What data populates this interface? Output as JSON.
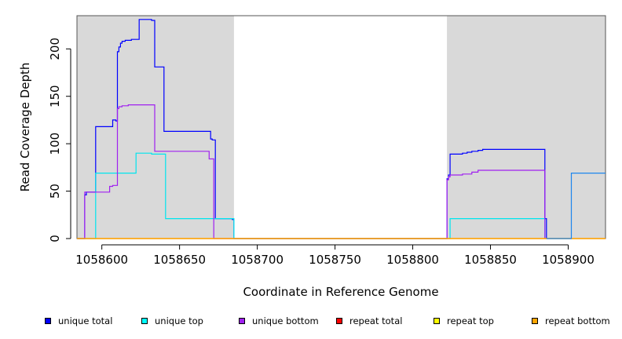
{
  "chart_data": {
    "type": "line",
    "title": "",
    "xlabel": "Coordinate in Reference Genome",
    "ylabel": "Read Coverage Depth",
    "xlim": [
      1058584,
      1058924
    ],
    "ylim": [
      0,
      235
    ],
    "xticks": [
      1058600,
      1058650,
      1058700,
      1058750,
      1058800,
      1058850,
      1058900
    ],
    "xtick_labels": [
      "1058600",
      "1058650",
      "1058700",
      "1058750",
      "1058800",
      "1058850",
      "1058900"
    ],
    "yticks": [
      0,
      50,
      100,
      150,
      200
    ],
    "ytick_labels": [
      "0",
      "50",
      "100",
      "150",
      "200"
    ],
    "grid": false,
    "legend_position": "bottom",
    "shaded_regions": [
      [
        1058584,
        1058685
      ],
      [
        1058822,
        1058924
      ]
    ],
    "series": [
      {
        "name": "unique total",
        "color": "#0000ff",
        "x": [
          1058584,
          1058589,
          1058589,
          1058590,
          1058590,
          1058596,
          1058596,
          1058607,
          1058607,
          1058609,
          1058609,
          1058610,
          1058610,
          1058611,
          1058611,
          1058612,
          1058612,
          1058613,
          1058613,
          1058615,
          1058615,
          1058619,
          1058619,
          1058624,
          1058624,
          1058632,
          1058632,
          1058634,
          1058634,
          1058640,
          1058640,
          1058656,
          1058656,
          1058670,
          1058670,
          1058671,
          1058671,
          1058673,
          1058673,
          1058684,
          1058684,
          1058685,
          1058685,
          1058822,
          1058822,
          1058823,
          1058823,
          1058824,
          1058824,
          1058832,
          1058832,
          1058835,
          1058835,
          1058838,
          1058838,
          1058842,
          1058842,
          1058845,
          1058845,
          1058885,
          1058885,
          1058886,
          1058886
        ],
        "y": [
          0,
          0,
          46,
          46,
          49,
          49,
          118,
          118,
          125,
          125,
          124,
          124,
          197,
          197,
          202,
          202,
          206,
          206,
          208,
          208,
          209,
          209,
          210,
          210,
          231,
          231,
          230,
          230,
          181,
          181,
          113,
          113,
          113,
          113,
          105,
          105,
          104,
          104,
          21,
          21,
          20,
          20,
          0,
          0,
          63,
          63,
          67,
          67,
          89,
          89,
          90,
          90,
          91,
          91,
          92,
          92,
          93,
          93,
          94,
          94,
          21,
          21,
          0
        ]
      },
      {
        "name": "unique top",
        "color": "#00e5ee",
        "x": [
          1058584,
          1058596,
          1058596,
          1058622,
          1058622,
          1058632,
          1058632,
          1058641,
          1058641,
          1058685,
          1058685,
          1058824,
          1058824,
          1058885,
          1058885
        ],
        "y": [
          0,
          0,
          69,
          69,
          90,
          90,
          89,
          89,
          21,
          21,
          0,
          0,
          21,
          21,
          0
        ]
      },
      {
        "name": "unique bottom",
        "color": "#a020f0",
        "x": [
          1058584,
          1058589,
          1058589,
          1058605,
          1058605,
          1058607,
          1058607,
          1058610,
          1058610,
          1058611,
          1058611,
          1058613,
          1058613,
          1058617,
          1058617,
          1058634,
          1058634,
          1058669,
          1058669,
          1058672,
          1058672,
          1058822,
          1058822,
          1058823,
          1058823,
          1058824,
          1058824,
          1058832,
          1058832,
          1058838,
          1058838,
          1058842,
          1058842,
          1058885,
          1058885
        ],
        "y": [
          0,
          0,
          49,
          49,
          55,
          55,
          56,
          56,
          137,
          137,
          139,
          139,
          140,
          140,
          141,
          141,
          92,
          92,
          84,
          84,
          0,
          0,
          62,
          62,
          65,
          65,
          67,
          67,
          68,
          68,
          70,
          70,
          72,
          72,
          0
        ]
      },
      {
        "name": "repeat total",
        "color": "#ff0000",
        "x": [
          1058584,
          1058924
        ],
        "y": [
          0,
          0
        ]
      },
      {
        "name": "repeat top",
        "color": "#ffff00",
        "x": [
          1058584,
          1058924
        ],
        "y": [
          0,
          0
        ]
      },
      {
        "name": "repeat bottom",
        "color": "#ffa500",
        "x": [
          1058584,
          1058924
        ],
        "y": [
          0,
          0
        ]
      },
      {
        "name": "",
        "color": "#1c86ee",
        "x": [
          1058886,
          1058902,
          1058902,
          1058924
        ],
        "y": [
          0,
          0,
          69,
          69
        ]
      }
    ]
  },
  "legend": {
    "items": [
      {
        "label": "unique total",
        "color": "#0000ff"
      },
      {
        "label": "unique top",
        "color": "#00ffff"
      },
      {
        "label": "unique bottom",
        "color": "#a020f0"
      },
      {
        "label": "repeat total",
        "color": "#ff0000"
      },
      {
        "label": "repeat top",
        "color": "#ffff00"
      },
      {
        "label": "repeat bottom",
        "color": "#ffa500"
      }
    ]
  }
}
